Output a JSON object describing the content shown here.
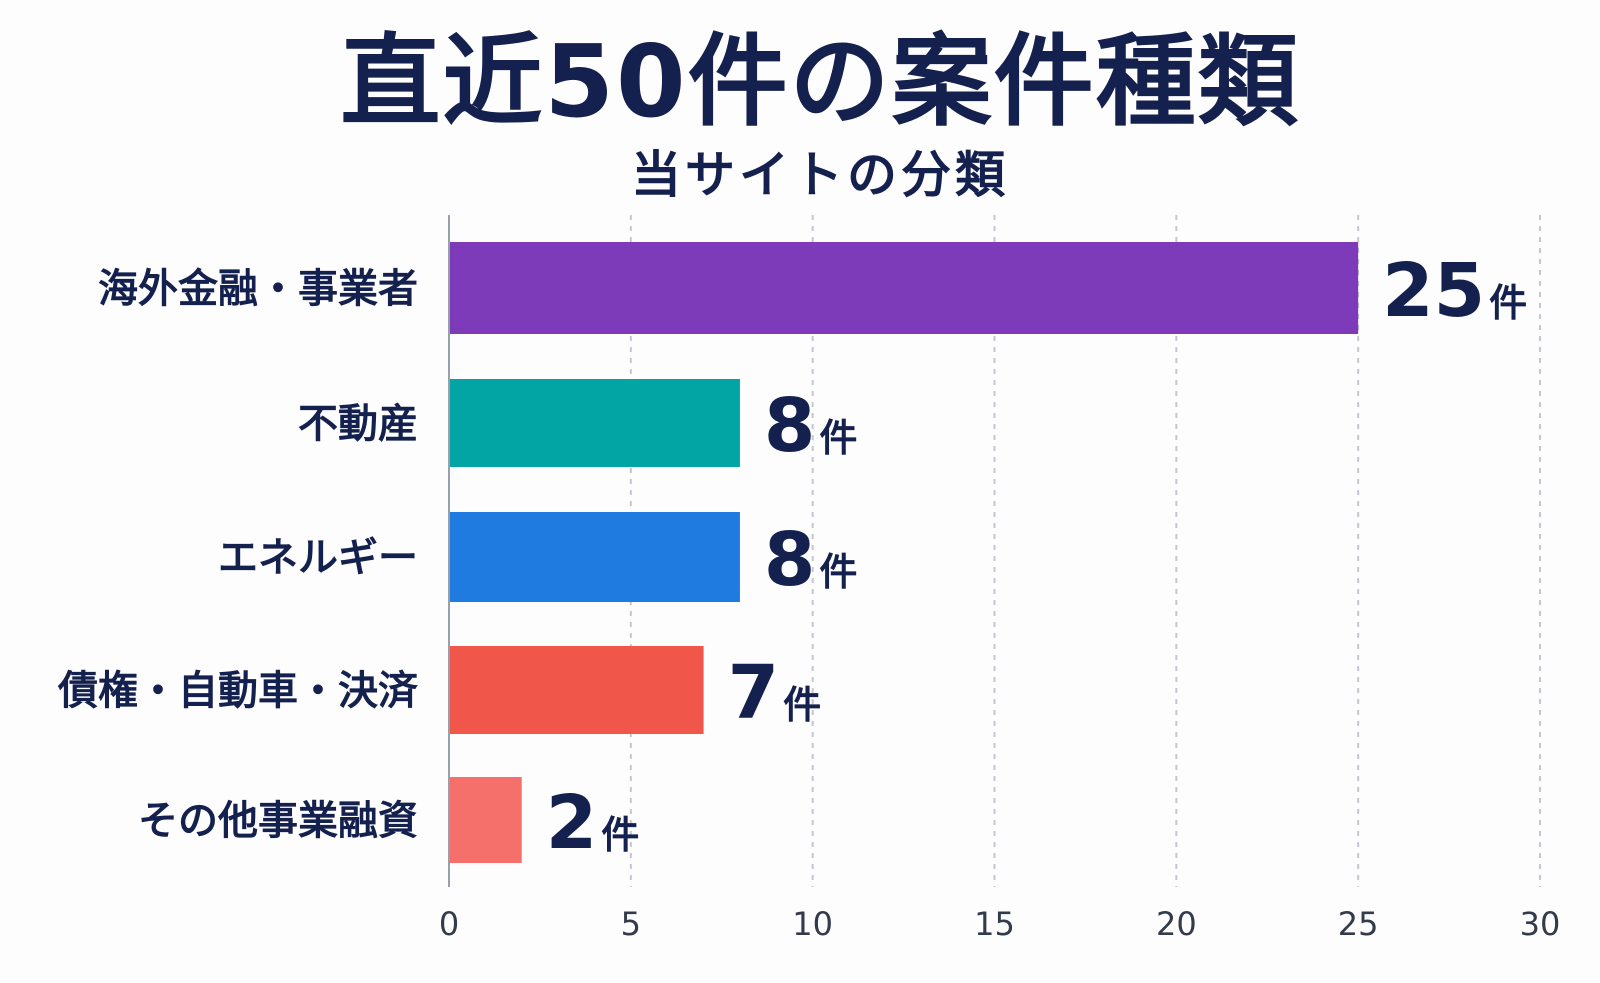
{
  "chart_data": {
    "type": "bar",
    "orientation": "horizontal",
    "title": "直近50件の案件種類",
    "subtitle": "当サイトの分類",
    "categories": [
      "海外金融・事業者",
      "不動産",
      "エネルギー",
      "債権・自動車・決済",
      "その他事業融資"
    ],
    "values": [
      25,
      8,
      8,
      7,
      2
    ],
    "value_unit": "件",
    "colors": [
      "#7e3bb9",
      "#03a4a4",
      "#1f7be0",
      "#f0564a",
      "#f5706a"
    ],
    "xlim": [
      0,
      30
    ],
    "xticks": [
      0,
      5,
      10,
      15,
      20,
      25,
      30
    ],
    "xlabel": "",
    "ylabel": "",
    "grid": "vertical dashed"
  }
}
